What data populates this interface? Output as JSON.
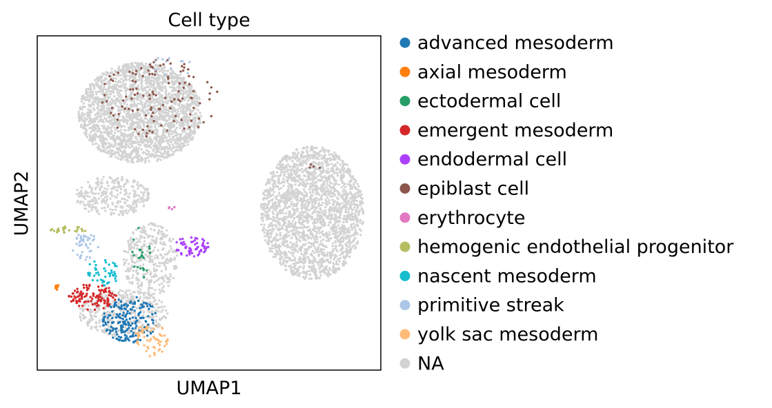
{
  "chart_data": {
    "type": "scatter",
    "title": "Cell type",
    "xlabel": "UMAP1",
    "ylabel": "UMAP2",
    "xlim": [
      0,
      100
    ],
    "ylim": [
      0,
      100
    ],
    "ticks": "none",
    "grid": false,
    "legend_position": "right-outside",
    "legend": [
      {
        "name": "advanced mesoderm",
        "color": "#1f77b4"
      },
      {
        "name": "axial mesoderm",
        "color": "#ff7f0e"
      },
      {
        "name": "ectodermal cell",
        "color": "#279e68"
      },
      {
        "name": "emergent mesoderm",
        "color": "#d62728"
      },
      {
        "name": "endodermal cell",
        "color": "#aa40fc"
      },
      {
        "name": "epiblast cell",
        "color": "#8c564b"
      },
      {
        "name": "erythrocyte",
        "color": "#e377c2"
      },
      {
        "name": "hemogenic endothelial progenitor",
        "color": "#b5bd61"
      },
      {
        "name": "nascent mesoderm",
        "color": "#17becf"
      },
      {
        "name": "primitive streak",
        "color": "#aec7e8"
      },
      {
        "name": "yolk sac mesoderm",
        "color": "#ffbb78"
      },
      {
        "name": "NA",
        "color": "#d3d3d3"
      }
    ],
    "clusters": [
      {
        "category": "NA",
        "n": 2400,
        "cx": 30,
        "cy": 77,
        "rx": 18,
        "ry": 15
      },
      {
        "category": "NA",
        "n": 2200,
        "cx": 80,
        "cy": 47,
        "rx": 15,
        "ry": 20
      },
      {
        "category": "NA",
        "n": 300,
        "cx": 22,
        "cy": 52,
        "rx": 11,
        "ry": 6
      },
      {
        "category": "NA",
        "n": 350,
        "cx": 33,
        "cy": 33,
        "rx": 8,
        "ry": 11
      },
      {
        "category": "NA",
        "n": 400,
        "cx": 25,
        "cy": 17,
        "rx": 13,
        "ry": 7
      },
      {
        "category": "epiblast cell",
        "n": 120,
        "cx": 35,
        "cy": 81,
        "rx": 18,
        "ry": 12
      },
      {
        "category": "epiblast cell",
        "n": 4,
        "cx": 81,
        "cy": 61,
        "rx": 2,
        "ry": 1
      },
      {
        "category": "advanced mesoderm",
        "n": 200,
        "cx": 27,
        "cy": 15,
        "rx": 8,
        "ry": 7
      },
      {
        "category": "emergent mesoderm",
        "n": 110,
        "cx": 16,
        "cy": 22,
        "rx": 7,
        "ry": 4
      },
      {
        "category": "yolk sac mesoderm",
        "n": 60,
        "cx": 33,
        "cy": 9,
        "rx": 5,
        "ry": 5
      },
      {
        "category": "nascent mesoderm",
        "n": 50,
        "cx": 19,
        "cy": 29,
        "rx": 5,
        "ry": 4
      },
      {
        "category": "primitive streak",
        "n": 40,
        "cx": 14,
        "cy": 37,
        "rx": 4,
        "ry": 4
      },
      {
        "category": "primitive streak",
        "n": 12,
        "cx": 40,
        "cy": 91,
        "rx": 10,
        "ry": 3
      },
      {
        "category": "endodermal cell",
        "n": 60,
        "cx": 45,
        "cy": 37,
        "rx": 5,
        "ry": 3
      },
      {
        "category": "ectodermal cell",
        "n": 25,
        "cx": 30,
        "cy": 35,
        "rx": 3,
        "ry": 8
      },
      {
        "category": "hemogenic endothelial progenitor",
        "n": 25,
        "cx": 9,
        "cy": 42,
        "rx": 6,
        "ry": 1
      },
      {
        "category": "erythrocyte",
        "n": 5,
        "cx": 39,
        "cy": 49,
        "rx": 1,
        "ry": 1
      },
      {
        "category": "axial mesoderm",
        "n": 6,
        "cx": 6,
        "cy": 25,
        "rx": 1,
        "ry": 1
      }
    ]
  }
}
